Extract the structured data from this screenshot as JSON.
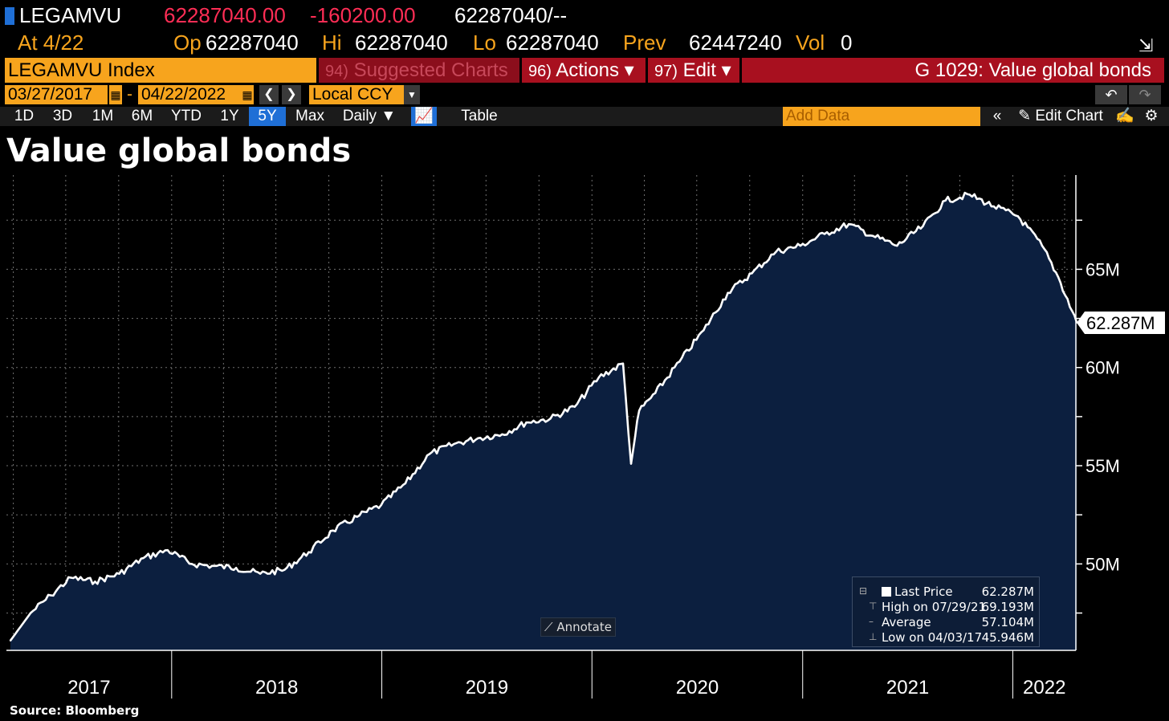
{
  "header": {
    "ticker": "LEGAMVU",
    "last": "62287040.00",
    "change": "-160200.00",
    "bid_ask": "62287040/--",
    "at_label": "At 4/22",
    "op_label": "Op",
    "op": "62287040",
    "hi_label": "Hi",
    "hi": "62287040",
    "lo_label": "Lo",
    "lo": "62287040",
    "prev_label": "Prev",
    "prev": "62447240",
    "vol_label": "Vol",
    "vol": "0"
  },
  "toolbar": {
    "security": "LEGAMVU Index",
    "suggested_num": "94)",
    "suggested": "Suggested Charts",
    "actions_num": "96)",
    "actions": "Actions ▾",
    "edit_num": "97)",
    "edit": "Edit ▾",
    "chart_title": "G 1029: Value global bonds"
  },
  "range": {
    "start": "03/27/2017",
    "end": "04/22/2022",
    "currency": "Local CCY"
  },
  "periods": [
    "1D",
    "3D",
    "1M",
    "6M",
    "YTD",
    "1Y",
    "5Y",
    "Max"
  ],
  "active_period": "5Y",
  "frequency": "Daily ▼",
  "table_label": "Table",
  "add_data_placeholder": "Add Data",
  "edit_chart_label": "Edit Chart",
  "annotate_label": "Annotate",
  "source": "Source: Bloomberg",
  "colors": {
    "accent_orange": "#f7a41d",
    "accent_red": "#a8101f",
    "area_fill": "#0c1f3f",
    "line": "#ffffff",
    "negative": "#ff2d55"
  },
  "chart_data": {
    "type": "area",
    "title": "Value global bonds",
    "xlabel": "",
    "ylabel": "",
    "x_tick_labels": [
      "2017",
      "2018",
      "2019",
      "2020",
      "2021",
      "2022"
    ],
    "y_tick_labels": [
      "50M",
      "55M",
      "60M",
      "65M"
    ],
    "y_ticks": [
      50,
      55,
      60,
      65
    ],
    "ylim": [
      45.6,
      69.8
    ],
    "units": "millions",
    "grid": true,
    "last_value_label": "62.287M",
    "series": [
      {
        "x": [
          "2017-03-27",
          "2017-05-01",
          "2017-06-05",
          "2017-07-10",
          "2017-08-21",
          "2017-10-02",
          "2017-11-13",
          "2017-12-25",
          "2018-02-05",
          "2018-03-12",
          "2018-04-23",
          "2018-06-04",
          "2018-07-16",
          "2018-08-27",
          "2018-10-08",
          "2018-11-19",
          "2018-12-31",
          "2019-02-11",
          "2019-03-25",
          "2019-05-06",
          "2019-06-17",
          "2019-07-29",
          "2019-09-09",
          "2019-10-21",
          "2019-12-02",
          "2020-01-13",
          "2020-02-24",
          "2020-03-09",
          "2020-03-16",
          "2020-03-23",
          "2020-04-20",
          "2020-06-01",
          "2020-07-13",
          "2020-08-24",
          "2020-10-05",
          "2020-11-16",
          "2020-12-28",
          "2021-02-08",
          "2021-03-22",
          "2021-05-03",
          "2021-06-14",
          "2021-07-29",
          "2021-09-06",
          "2021-10-18",
          "2021-11-29",
          "2022-01-10",
          "2022-02-21",
          "2022-03-21",
          "2022-04-22"
        ],
        "values": [
          46.1,
          47.5,
          48.4,
          49.3,
          49.1,
          49.5,
          50.3,
          50.7,
          50.0,
          49.9,
          49.8,
          49.5,
          49.7,
          50.6,
          51.7,
          52.4,
          53.0,
          54.1,
          55.6,
          56.1,
          56.4,
          56.6,
          57.2,
          57.4,
          58.0,
          59.5,
          60.2,
          55.1,
          56.5,
          57.8,
          58.7,
          60.3,
          61.9,
          63.8,
          64.8,
          65.9,
          66.2,
          66.8,
          67.3,
          66.7,
          66.2,
          67.2,
          68.5,
          68.8,
          68.2,
          67.7,
          66.2,
          64.6,
          62.29
        ]
      }
    ],
    "legend": {
      "placement": "bottom-right",
      "items": [
        {
          "label": "Last Price",
          "value": "62.287M"
        },
        {
          "label": "High on 07/29/21",
          "value": "69.193M"
        },
        {
          "label": "Average",
          "value": "57.104M"
        },
        {
          "label": "Low on 04/03/17",
          "value": "45.946M"
        }
      ]
    }
  }
}
